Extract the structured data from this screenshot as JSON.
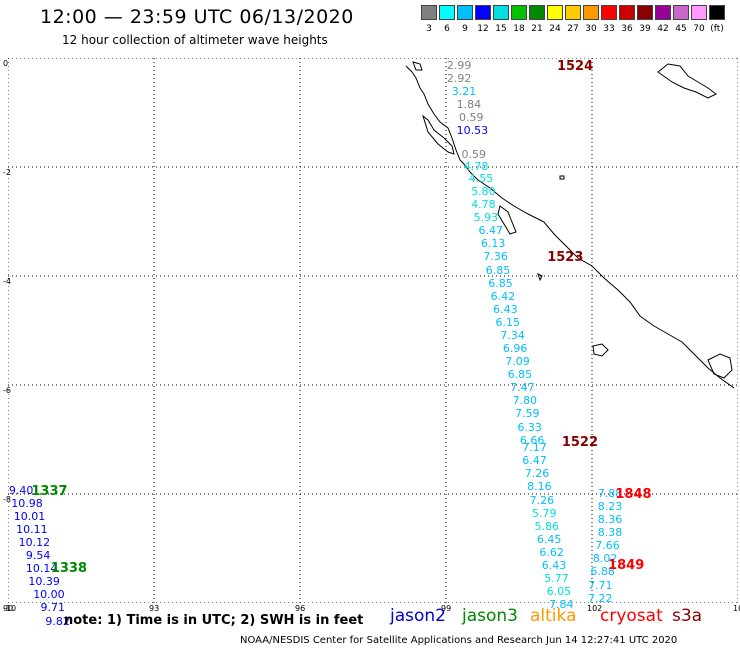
{
  "header": {
    "title": "12:00 — 23:59 UTC 06/13/2020",
    "subtitle": "12 hour collection of altimeter wave heights"
  },
  "scale": {
    "colors": [
      "#808080",
      "#00ffff",
      "#00bfff",
      "#0000ff",
      "#00e0e0",
      "#00c000",
      "#008800",
      "#ffff00",
      "#ffcc00",
      "#ff9900",
      "#ff0000",
      "#cc0000",
      "#880000",
      "#990099",
      "#cc66cc",
      "#ff99ff",
      "#000000"
    ],
    "labels": [
      "3",
      "6",
      "9",
      "12",
      "15",
      "18",
      "21",
      "24",
      "27",
      "30",
      "33",
      "36",
      "39",
      "42",
      "45",
      "70",
      "(ft)"
    ]
  },
  "map": {
    "x_range": [
      90,
      105
    ],
    "y_range": [
      0,
      -10
    ],
    "x_ticks": [
      "90",
      "93",
      "96",
      "99",
      "102",
      "105"
    ],
    "y_ticks": [
      "0",
      "-2",
      "-4",
      "-6",
      "-8",
      "-10"
    ],
    "grid": true,
    "tracks": [
      {
        "pass": "1524",
        "color": "#880000",
        "label_pos": [
          101.65,
          -0.14
        ],
        "points": [
          {
            "x": 99.1,
            "y": -0.14,
            "v": "2.99",
            "c": "#808080"
          },
          {
            "x": 99.1,
            "y": -0.38,
            "v": "2.92",
            "c": "#808080"
          },
          {
            "x": 99.2,
            "y": -0.62,
            "v": "3.21",
            "c": "#00bfff"
          },
          {
            "x": 99.3,
            "y": -0.86,
            "v": "1.84",
            "c": "#808080"
          },
          {
            "x": 99.35,
            "y": -1.1,
            "v": "0.59",
            "c": "#808080"
          },
          {
            "x": 99.3,
            "y": -1.34,
            "v": "10.53",
            "c": "#0000ff"
          },
          {
            "x": 99.4,
            "y": -1.78,
            "v": "0.59",
            "c": "#808080"
          },
          {
            "x": 99.45,
            "y": -2.0,
            "v": "4.78",
            "c": "#00e0e0"
          },
          {
            "x": 99.55,
            "y": -2.22,
            "v": "4.55",
            "c": "#00e0e0"
          },
          {
            "x": 99.6,
            "y": -2.46,
            "v": "5.80",
            "c": "#00e0e0"
          },
          {
            "x": 99.6,
            "y": -2.7,
            "v": "4.78",
            "c": "#00e0e0"
          },
          {
            "x": 99.65,
            "y": -2.94,
            "v": "5.93",
            "c": "#00e0e0"
          },
          {
            "x": 99.75,
            "y": -3.18,
            "v": "6.47",
            "c": "#00bfff"
          },
          {
            "x": 99.8,
            "y": -3.42,
            "v": "6.13",
            "c": "#00bfff"
          },
          {
            "x": 99.85,
            "y": -3.66,
            "v": "7.36",
            "c": "#00bfff"
          },
          {
            "x": 99.9,
            "y": -3.9,
            "v": "6.85",
            "c": "#00bfff"
          },
          {
            "x": 99.95,
            "y": -4.14,
            "v": "6.85",
            "c": "#00bfff"
          },
          {
            "x": 100.0,
            "y": -4.38,
            "v": "6.42",
            "c": "#00bfff"
          },
          {
            "x": 100.05,
            "y": -4.62,
            "v": "6.43",
            "c": "#00bfff"
          },
          {
            "x": 100.1,
            "y": -4.86,
            "v": "6.15",
            "c": "#00bfff"
          },
          {
            "x": 100.2,
            "y": -5.1,
            "v": "7.34",
            "c": "#00bfff"
          },
          {
            "x": 100.25,
            "y": -5.34,
            "v": "6.96",
            "c": "#00bfff"
          },
          {
            "x": 100.3,
            "y": -5.58,
            "v": "7.09",
            "c": "#00bfff"
          },
          {
            "x": 100.35,
            "y": -5.82,
            "v": "6.85",
            "c": "#00bfff"
          },
          {
            "x": 100.4,
            "y": -6.06,
            "v": "7.47",
            "c": "#00bfff"
          }
        ]
      },
      {
        "pass": "1523",
        "color": "#880000",
        "label_pos": [
          101.45,
          -3.66
        ],
        "points": []
      },
      {
        "pass": "1522",
        "color": "#880000",
        "label_pos": [
          101.75,
          -7.04
        ],
        "points": [
          {
            "x": 100.45,
            "y": -6.3,
            "v": "7.80",
            "c": "#00bfff"
          },
          {
            "x": 100.5,
            "y": -6.54,
            "v": "7.59",
            "c": "#00bfff"
          },
          {
            "x": 100.55,
            "y": -6.78,
            "v": "6.33",
            "c": "#00bfff"
          },
          {
            "x": 100.6,
            "y": -7.02,
            "v": "6.66",
            "c": "#00bfff"
          },
          {
            "x": 100.65,
            "y": -7.16,
            "v": "7.17",
            "c": "#00bfff"
          },
          {
            "x": 100.65,
            "y": -7.4,
            "v": "6.47",
            "c": "#00bfff"
          },
          {
            "x": 100.7,
            "y": -7.64,
            "v": "7.26",
            "c": "#00bfff"
          },
          {
            "x": 100.75,
            "y": -7.88,
            "v": "8.16",
            "c": "#00bfff"
          },
          {
            "x": 100.8,
            "y": -8.12,
            "v": "7.26",
            "c": "#00bfff"
          },
          {
            "x": 100.85,
            "y": -8.36,
            "v": "5.79",
            "c": "#00e0e0"
          },
          {
            "x": 100.9,
            "y": -8.6,
            "v": "5.86",
            "c": "#00e0e0"
          },
          {
            "x": 100.95,
            "y": -8.84,
            "v": "6.45",
            "c": "#00bfff"
          },
          {
            "x": 101.0,
            "y": -9.08,
            "v": "6.62",
            "c": "#00bfff"
          },
          {
            "x": 101.05,
            "y": -9.32,
            "v": "6.43",
            "c": "#00bfff"
          },
          {
            "x": 101.1,
            "y": -9.56,
            "v": "5.77",
            "c": "#00e0e0"
          },
          {
            "x": 101.15,
            "y": -9.8,
            "v": "6.05",
            "c": "#00e0e0"
          },
          {
            "x": 101.2,
            "y": -10.04,
            "v": "7.84",
            "c": "#00bfff"
          }
        ]
      },
      {
        "pass": "1848",
        "color": "#ff0000",
        "label_pos": [
          102.85,
          -8.0
        ],
        "points": [
          {
            "x": 102.2,
            "y": -8.0,
            "v": "7.88",
            "c": "#00bfff"
          },
          {
            "x": 102.2,
            "y": -8.24,
            "v": "8.23",
            "c": "#00bfff"
          },
          {
            "x": 102.2,
            "y": -8.48,
            "v": "8.36",
            "c": "#00bfff"
          },
          {
            "x": 102.2,
            "y": -8.72,
            "v": "8.38",
            "c": "#00bfff"
          },
          {
            "x": 102.15,
            "y": -8.96,
            "v": "7.66",
            "c": "#00bfff"
          }
        ]
      },
      {
        "pass": "1849",
        "color": "#ff0000",
        "label_pos": [
          102.7,
          -9.3
        ],
        "points": [
          {
            "x": 102.1,
            "y": -9.2,
            "v": "8.02",
            "c": "#00bfff"
          },
          {
            "x": 102.05,
            "y": -9.44,
            "v": "6.88",
            "c": "#00bfff"
          },
          {
            "x": 102.0,
            "y": -9.68,
            "v": "7.71",
            "c": "#00bfff"
          },
          {
            "x": 102.0,
            "y": -9.92,
            "v": "7.22",
            "c": "#00bfff"
          }
        ]
      },
      {
        "pass": "1337",
        "color": "#008800",
        "label_pos": [
          90.85,
          -7.94
        ],
        "points": [
          {
            "x": 90.1,
            "y": -7.94,
            "v": "9.40",
            "c": "#0000ff"
          },
          {
            "x": 90.15,
            "y": -8.18,
            "v": "10.98",
            "c": "#0000ff"
          },
          {
            "x": 90.2,
            "y": -8.42,
            "v": "10.01",
            "c": "#0000ff"
          },
          {
            "x": 90.25,
            "y": -8.66,
            "v": "10.11",
            "c": "#0000ff"
          },
          {
            "x": 90.3,
            "y": -8.9,
            "v": "10.12",
            "c": "#0000ff"
          },
          {
            "x": 90.45,
            "y": -9.14,
            "v": "9.54",
            "c": "#0000ff"
          },
          {
            "x": 90.45,
            "y": -9.38,
            "v": "10.14",
            "c": "#0000ff"
          },
          {
            "x": 90.5,
            "y": -9.62,
            "v": "10.39",
            "c": "#0000ff"
          },
          {
            "x": 90.6,
            "y": -9.86,
            "v": "10.00",
            "c": "#0000ff"
          },
          {
            "x": 90.75,
            "y": -10.1,
            "v": "9.71",
            "c": "#0000ff"
          },
          {
            "x": 90.85,
            "y": -10.34,
            "v": "9.82",
            "c": "#0000ff"
          }
        ]
      },
      {
        "pass": "1338",
        "color": "#008800",
        "label_pos": [
          91.25,
          -9.36
        ],
        "points": []
      }
    ]
  },
  "footer": {
    "note": "note:  1) Time is in UTC;  2) SWH is in feet",
    "legend": [
      {
        "name": "jason2",
        "color": "#0000cc"
      },
      {
        "name": "jason3",
        "color": "#008800"
      },
      {
        "name": "altika",
        "color": "#ff9900"
      },
      {
        "name": "cryosat",
        "color": "#ff0000"
      },
      {
        "name": "s3a",
        "color": "#880000"
      }
    ],
    "credit": "NOAA/NESDIS Center for Satellite Applications and Research     Jun 14 12:27:41 UTC 2020"
  }
}
